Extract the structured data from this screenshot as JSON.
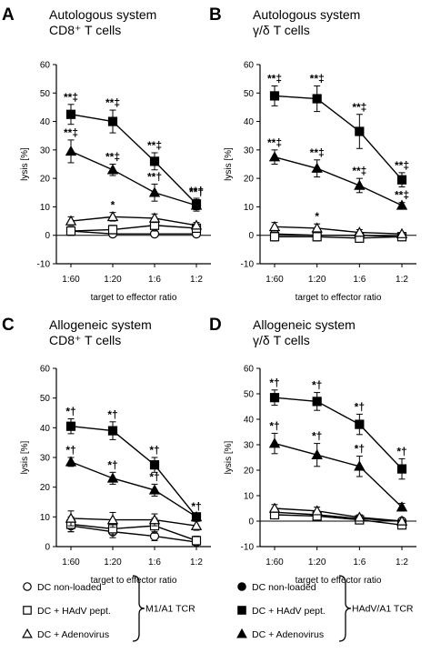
{
  "chart_data": [
    {
      "panel": "A",
      "type": "line",
      "title": "Autologous system",
      "subtitle": "CD8⁺ T cells",
      "xlabel": "target to effector ratio",
      "ylabel": "lysis [%]",
      "categories": [
        "1:60",
        "1:20",
        "1:6",
        "1:2"
      ],
      "ylim": [
        -10,
        60
      ],
      "yticks": [
        -10,
        0,
        10,
        20,
        30,
        40,
        50,
        60
      ],
      "series": [
        {
          "marker": "square-filled",
          "values": [
            42.5,
            40,
            26,
            11
          ],
          "errors": [
            3.5,
            4,
            3,
            2
          ],
          "annotations": [
            "**‡",
            "**‡",
            "**‡",
            "**†"
          ]
        },
        {
          "marker": "triangle-filled",
          "values": [
            29.5,
            23,
            15,
            10.5
          ],
          "errors": [
            4,
            2,
            3,
            2
          ],
          "annotations": [
            "**‡",
            "**‡",
            "**†",
            "**†"
          ]
        },
        {
          "marker": "triangle-open",
          "values": [
            5,
            6.5,
            6,
            3.5
          ],
          "errors": [
            1.5,
            1.5,
            1.5,
            1
          ],
          "annotations": [
            "",
            "*",
            "",
            ""
          ]
        },
        {
          "marker": "square-open",
          "values": [
            1.5,
            2,
            3.5,
            2.5
          ],
          "errors": [
            1.5,
            1.5,
            2,
            1
          ],
          "annotations": [
            "",
            "",
            "",
            ""
          ]
        },
        {
          "marker": "circle-open",
          "values": [
            1.5,
            0.5,
            0.5,
            0.5
          ],
          "errors": [
            1,
            1,
            1,
            0.5
          ],
          "annotations": [
            "",
            "",
            "",
            ""
          ]
        }
      ]
    },
    {
      "panel": "B",
      "type": "line",
      "title": "Autologous system",
      "subtitle": "γ/δ T cells",
      "xlabel": "target to effector ratio",
      "ylabel": "lysis [%]",
      "categories": [
        "1:60",
        "1:20",
        "1:6",
        "1:2"
      ],
      "ylim": [
        -10,
        60
      ],
      "yticks": [
        -10,
        0,
        10,
        20,
        30,
        40,
        50,
        60
      ],
      "series": [
        {
          "marker": "square-filled",
          "values": [
            49,
            48,
            36.5,
            19.5
          ],
          "errors": [
            3.5,
            4.5,
            6,
            2.5
          ],
          "annotations": [
            "**‡",
            "**‡",
            "**‡",
            "**‡"
          ]
        },
        {
          "marker": "triangle-filled",
          "values": [
            27.5,
            23.5,
            17.5,
            10.5
          ],
          "errors": [
            2.5,
            3,
            2.5,
            1
          ],
          "annotations": [
            "**‡",
            "**‡",
            "**‡",
            "**‡"
          ]
        },
        {
          "marker": "triangle-open",
          "values": [
            3,
            2.5,
            1,
            0.5
          ],
          "errors": [
            1.5,
            1.5,
            1,
            0.5
          ],
          "annotations": [
            "",
            "*",
            "",
            ""
          ]
        },
        {
          "marker": "square-open",
          "values": [
            -0.5,
            -0.5,
            -1,
            -0.5
          ],
          "errors": [
            1.5,
            1.5,
            1,
            0.5
          ],
          "annotations": [
            "",
            "",
            "",
            ""
          ]
        },
        {
          "marker": "circle-open",
          "values": [
            0.5,
            0,
            0,
            -0.5
          ],
          "errors": [
            1,
            1,
            1,
            0.5
          ],
          "annotations": [
            "",
            "",
            "",
            ""
          ]
        }
      ]
    },
    {
      "panel": "C",
      "type": "line",
      "title": "Allogeneic system",
      "subtitle": "CD8⁺ T cells",
      "xlabel": "target to effector ratio",
      "ylabel": "lysis [%]",
      "categories": [
        "1:60",
        "1:20",
        "1:6",
        "1:2"
      ],
      "ylim": [
        0,
        60
      ],
      "yticks": [
        0,
        10,
        20,
        30,
        40,
        50,
        60
      ],
      "series": [
        {
          "marker": "square-filled",
          "values": [
            40.5,
            39,
            27.5,
            10
          ],
          "errors": [
            2.5,
            3,
            2.5,
            1
          ],
          "annotations": [
            "*†",
            "*†",
            "*†",
            "*†"
          ]
        },
        {
          "marker": "triangle-filled",
          "values": [
            28.5,
            23,
            19,
            10
          ],
          "errors": [
            1.5,
            2,
            2,
            1
          ],
          "annotations": [
            "*†",
            "*†",
            "*†",
            ""
          ]
        },
        {
          "marker": "triangle-open",
          "values": [
            9.5,
            9,
            9,
            7
          ],
          "errors": [
            2.5,
            2.5,
            2,
            1.5
          ],
          "annotations": [
            "",
            "",
            "",
            ""
          ]
        },
        {
          "marker": "square-open",
          "values": [
            7.5,
            6,
            7,
            2
          ],
          "errors": [
            2.5,
            2,
            2.5,
            1.5
          ],
          "annotations": [
            "",
            "",
            "",
            ""
          ]
        },
        {
          "marker": "circle-open",
          "values": [
            7,
            5,
            3.5,
            1.5
          ],
          "errors": [
            2,
            2,
            1.5,
            1
          ],
          "annotations": [
            "",
            "",
            "",
            ""
          ]
        }
      ]
    },
    {
      "panel": "D",
      "type": "line",
      "title": "Allogeneic system",
      "subtitle": "γ/δ T cells",
      "xlabel": "target to effector ratio",
      "ylabel": "lysis [%]",
      "categories": [
        "1:60",
        "1:20",
        "1:6",
        "1:2"
      ],
      "ylim": [
        -10,
        60
      ],
      "yticks": [
        -10,
        0,
        10,
        20,
        30,
        40,
        50,
        60
      ],
      "series": [
        {
          "marker": "square-filled",
          "values": [
            48.5,
            47,
            38,
            20.5
          ],
          "errors": [
            3,
            3.5,
            4,
            4
          ],
          "annotations": [
            "*†",
            "*†",
            "*†",
            "*†"
          ]
        },
        {
          "marker": "triangle-filled",
          "values": [
            30.5,
            26,
            21.5,
            5.5
          ],
          "errors": [
            4,
            4.5,
            4,
            1.5
          ],
          "annotations": [
            "*†",
            "*†",
            "*†",
            ""
          ]
        },
        {
          "marker": "triangle-open",
          "values": [
            5,
            4,
            1.5,
            0
          ],
          "errors": [
            1.5,
            1.5,
            1,
            0.5
          ],
          "annotations": [
            "",
            "",
            "",
            ""
          ]
        },
        {
          "marker": "square-open",
          "values": [
            2.5,
            2,
            0.5,
            -1.5
          ],
          "errors": [
            1.5,
            1.5,
            1,
            0.5
          ],
          "annotations": [
            "",
            "",
            "",
            ""
          ]
        },
        {
          "marker": "circle-open",
          "values": [
            3.5,
            2.5,
            1,
            0
          ],
          "errors": [
            1.5,
            1,
            0.5,
            0.5
          ],
          "annotations": [
            "",
            "",
            "",
            ""
          ]
        }
      ]
    }
  ],
  "legends": [
    {
      "entries": [
        {
          "marker": "circle-open",
          "label": "DC non-loaded"
        },
        {
          "marker": "square-open",
          "label": "DC + HAdV pept."
        },
        {
          "marker": "triangle-open",
          "label": "DC + Adenovirus"
        }
      ],
      "group_label": "M1/A1 TCR"
    },
    {
      "entries": [
        {
          "marker": "circle-filled",
          "label": "DC non-loaded"
        },
        {
          "marker": "square-filled",
          "label": "DC + HAdV pept."
        },
        {
          "marker": "triangle-filled",
          "label": "DC + Adenovirus"
        }
      ],
      "group_label": "HAdV/A1 TCR"
    }
  ]
}
